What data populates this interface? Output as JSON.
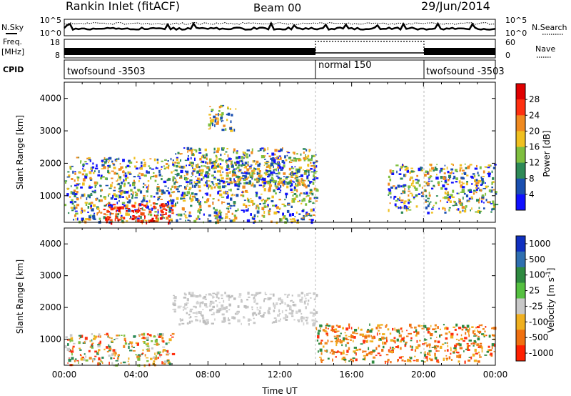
{
  "header": {
    "station": "Rankin Inlet (fitACF)",
    "beam": "Beam 00",
    "date": "29/Jun/2014"
  },
  "noise_panel": {
    "left_label": "N.Sky",
    "left_ticks": [
      "10^5",
      "10^0"
    ],
    "right_label": "N.Search",
    "right_ticks": [
      "10^5",
      "10^0"
    ]
  },
  "freq_panel": {
    "left_label_top": "Freq.",
    "left_label_bottom": "[MHz]",
    "left_ticks": [
      "18",
      "8"
    ],
    "right_label": "Nave",
    "right_ticks": [
      "60",
      "0"
    ]
  },
  "cpid": {
    "label": "CPID",
    "segments": [
      {
        "name": "twofsound -3503",
        "start": 0,
        "end": 14
      },
      {
        "name": "normal 150",
        "start": 14,
        "end": 20
      },
      {
        "name": "twofsound -3503",
        "start": 20,
        "end": 24
      }
    ]
  },
  "chart_data": [
    {
      "type": "heatmap",
      "title": "Power",
      "ylabel": "Slant Range [km]",
      "xlim_hours": [
        0,
        24
      ],
      "ylim": [
        180,
        4500
      ],
      "yticks": [
        "1000",
        "2000",
        "3000",
        "4000"
      ],
      "colorbar": {
        "label": "Power [dB]",
        "ticks": [
          "4",
          "8",
          "12",
          "16",
          "20",
          "24",
          "28"
        ],
        "colors": [
          "#1010ff",
          "#1a4fb0",
          "#2e8a57",
          "#7fbf3f",
          "#f0c020",
          "#f08a20",
          "#ff3010",
          "#e00000"
        ]
      },
      "regions": [
        {
          "t0": 0.0,
          "t1": 14.0,
          "r0": 200,
          "r1": 2200,
          "level": "moderate"
        },
        {
          "t0": 2.0,
          "t1": 6.0,
          "r0": 200,
          "r1": 800,
          "level": "strong"
        },
        {
          "t0": 6.0,
          "t1": 14.0,
          "r0": 1300,
          "r1": 2500,
          "level": "moderate"
        },
        {
          "t0": 8.0,
          "t1": 9.5,
          "r0": 3000,
          "r1": 3800,
          "level": "weak"
        },
        {
          "t0": 18.0,
          "t1": 24.0,
          "r0": 500,
          "r1": 2000,
          "level": "moderate"
        }
      ]
    },
    {
      "type": "heatmap",
      "title": "Velocity",
      "ylabel": "Slant Range [km]",
      "xlabel": "Time UT",
      "xlim_hours": [
        0,
        24
      ],
      "ylim": [
        180,
        4500
      ],
      "yticks": [
        "1000",
        "2000",
        "3000",
        "4000"
      ],
      "xticks": [
        "00:00",
        "04:00",
        "08:00",
        "12:00",
        "16:00",
        "20:00",
        "00:00"
      ],
      "colorbar": {
        "label": "Velocity [m s^-1]",
        "ticks": [
          "1000",
          "500",
          "100",
          "25",
          "-25",
          "-100",
          "-500",
          "-1000"
        ],
        "colors": [
          "#1030c0",
          "#2f6fb0",
          "#2e8a40",
          "#55c040",
          "#c8c8c8",
          "#f0b020",
          "#f07010",
          "#ff2000"
        ]
      },
      "regions": [
        {
          "t0": 0.0,
          "t1": 6.0,
          "r0": 200,
          "r1": 1200,
          "level": "mixed"
        },
        {
          "t0": 6.0,
          "t1": 14.0,
          "r0": 1500,
          "r1": 2500,
          "level": "ground"
        },
        {
          "t0": 14.0,
          "t1": 24.0,
          "r0": 300,
          "r1": 1500,
          "level": "negative"
        }
      ]
    }
  ]
}
